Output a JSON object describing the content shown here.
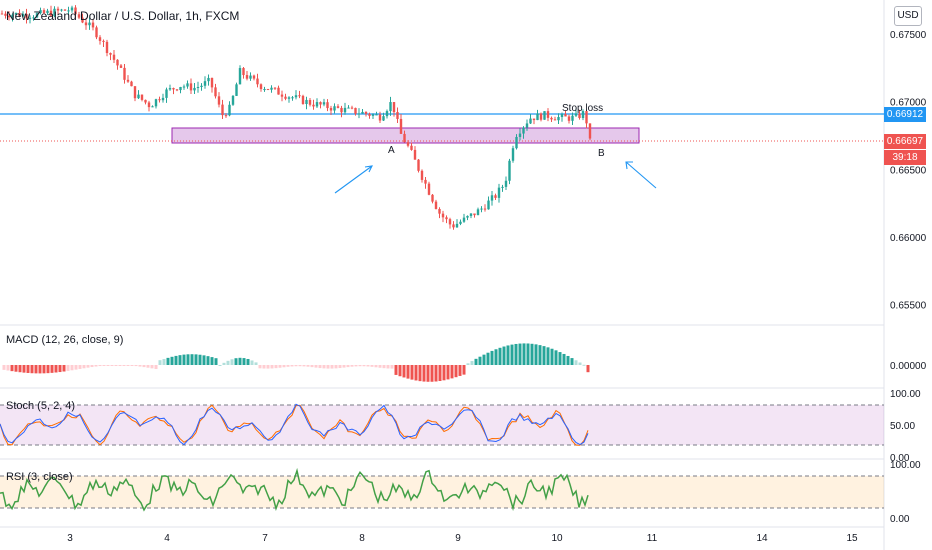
{
  "header": {
    "title": "New Zealand Dollar / U.S. Dollar, 1h, FXCM",
    "currency_button": "USD"
  },
  "price_axis": {
    "ticks": [
      "0.67500",
      "0.67000",
      "0.66500",
      "0.66000",
      "0.65500"
    ],
    "tick_values": [
      0.675,
      0.67,
      0.665,
      0.66,
      0.655
    ]
  },
  "price_tags": {
    "stop_level": "0.66912",
    "current_price": "0.66697",
    "countdown": "39:18"
  },
  "annotations": {
    "stop_loss": "Stop loss",
    "point_a": "A",
    "point_b": "B"
  },
  "macd": {
    "label": "MACD (12, 26, close, 9)",
    "axis_tick": "0.00000"
  },
  "stoch": {
    "label": "Stoch (5, 2, 4)",
    "axis_ticks": [
      "100.00",
      "50.00",
      "0.00"
    ]
  },
  "rsi": {
    "label": "RSI (3, close)",
    "axis_ticks": [
      "100.00",
      "0.00"
    ]
  },
  "time_axis": {
    "labels": [
      "3",
      "4",
      "7",
      "8",
      "9",
      "10",
      "11",
      "14",
      "15"
    ]
  },
  "colors": {
    "up": "#26a69a",
    "down": "#ef5350",
    "stop_line": "#2196f3",
    "zone_fill": "#e1bee7",
    "zone_border": "#9c27b0",
    "stoch_k": "#2962ff",
    "stoch_d": "#ff6d00",
    "rsi_line": "#43a047"
  },
  "chart_data": {
    "type": "candlestick",
    "symbol": "NZDUSD",
    "interval": "1h",
    "price_range": [
      0.6535,
      0.6775
    ],
    "approx_close_path": [
      [
        0,
        0.6765
      ],
      [
        35,
        0.6764
      ],
      [
        70,
        0.6768
      ],
      [
        95,
        0.6752
      ],
      [
        115,
        0.673
      ],
      [
        135,
        0.6705
      ],
      [
        150,
        0.6697
      ],
      [
        165,
        0.6707
      ],
      [
        180,
        0.6712
      ],
      [
        195,
        0.671
      ],
      [
        210,
        0.6715
      ],
      [
        222,
        0.669
      ],
      [
        230,
        0.6695
      ],
      [
        240,
        0.6722
      ],
      [
        260,
        0.6712
      ],
      [
        285,
        0.6705
      ],
      [
        310,
        0.6699
      ],
      [
        335,
        0.6695
      ],
      [
        360,
        0.6692
      ],
      [
        380,
        0.6689
      ],
      [
        392,
        0.67
      ],
      [
        400,
        0.6677
      ],
      [
        410,
        0.6664
      ],
      [
        420,
        0.6648
      ],
      [
        430,
        0.6632
      ],
      [
        440,
        0.6617
      ],
      [
        452,
        0.6608
      ],
      [
        465,
        0.6613
      ],
      [
        480,
        0.662
      ],
      [
        495,
        0.663
      ],
      [
        505,
        0.664
      ],
      [
        515,
        0.6675
      ],
      [
        530,
        0.6688
      ],
      [
        545,
        0.669
      ],
      [
        560,
        0.6688
      ],
      [
        575,
        0.6688
      ],
      [
        585,
        0.6692
      ],
      [
        590,
        0.667
      ]
    ],
    "stop_loss_price": 0.66912,
    "last_price": 0.66697
  }
}
